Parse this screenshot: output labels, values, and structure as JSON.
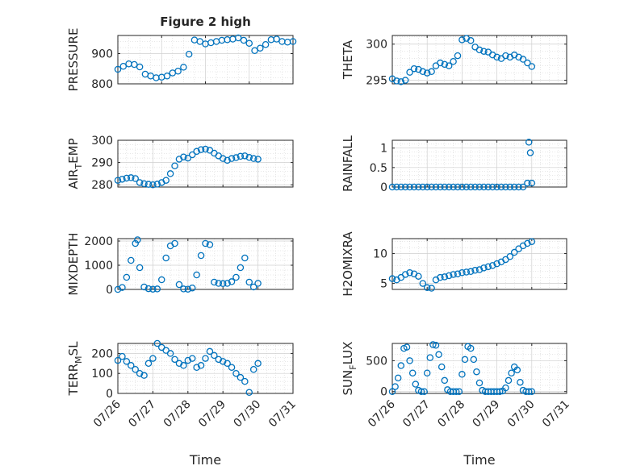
{
  "figure": {
    "title": "Figure 2 high"
  },
  "colors": {
    "marker": "#0072BD",
    "axis": "#262626",
    "grid": "#cfcfcf",
    "background": "#ffffff"
  },
  "chart_data": [
    {
      "type": "scatter",
      "id": "pressure",
      "title": "Figure 2 high",
      "ylabel": "PRESSURE",
      "xlabel": "",
      "xlim": [
        "07/26",
        "07/30"
      ],
      "ylim": [
        800,
        960
      ],
      "yticks": [
        800,
        900
      ],
      "grid": true,
      "marker": "open-circle",
      "x": [
        "07/26 00:00",
        "07/26 03:00",
        "07/26 06:00",
        "07/26 09:00",
        "07/26 12:00",
        "07/26 15:00",
        "07/26 18:00",
        "07/26 21:00",
        "07/27 00:00",
        "07/27 03:00",
        "07/27 06:00",
        "07/27 09:00",
        "07/27 12:00",
        "07/27 15:00",
        "07/27 18:00",
        "07/27 21:00",
        "07/28 00:00",
        "07/28 03:00",
        "07/28 06:00",
        "07/28 09:00",
        "07/28 12:00",
        "07/28 15:00",
        "07/28 18:00",
        "07/28 21:00",
        "07/29 00:00",
        "07/29 03:00",
        "07/29 06:00",
        "07/29 09:00",
        "07/29 12:00",
        "07/29 15:00",
        "07/29 18:00",
        "07/29 21:00",
        "07/30 00:00"
      ],
      "values": [
        848,
        858,
        866,
        864,
        856,
        832,
        826,
        820,
        822,
        826,
        836,
        842,
        855,
        898,
        945,
        940,
        932,
        936,
        940,
        944,
        946,
        948,
        952,
        944,
        934,
        910,
        918,
        930,
        946,
        948,
        940,
        938,
        940
      ]
    },
    {
      "type": "scatter",
      "id": "theta",
      "title": "",
      "ylabel": "THETA",
      "xlabel": "",
      "xlim": [
        "07/26",
        "07/31"
      ],
      "ylim": [
        294.5,
        301.2
      ],
      "yticks": [
        295,
        300
      ],
      "grid": true,
      "marker": "open-circle",
      "x": [
        "07/26 00:00",
        "07/26 03:00",
        "07/26 06:00",
        "07/26 09:00",
        "07/26 12:00",
        "07/26 15:00",
        "07/26 18:00",
        "07/26 21:00",
        "07/27 00:00",
        "07/27 03:00",
        "07/27 06:00",
        "07/27 09:00",
        "07/27 12:00",
        "07/27 15:00",
        "07/27 18:00",
        "07/27 21:00",
        "07/28 00:00",
        "07/28 03:00",
        "07/28 06:00",
        "07/28 09:00",
        "07/28 12:00",
        "07/28 15:00",
        "07/28 18:00",
        "07/28 21:00",
        "07/29 00:00",
        "07/29 03:00",
        "07/29 06:00",
        "07/29 09:00",
        "07/29 12:00",
        "07/29 15:00",
        "07/29 18:00",
        "07/29 21:00",
        "07/30 00:00"
      ],
      "values": [
        295.2,
        294.9,
        294.8,
        295.0,
        296.1,
        296.6,
        296.5,
        296.2,
        296.0,
        296.2,
        297.0,
        297.4,
        297.2,
        297.0,
        297.6,
        298.4,
        300.6,
        300.8,
        300.5,
        299.6,
        299.2,
        299.0,
        298.9,
        298.5,
        298.2,
        298.0,
        298.4,
        298.2,
        298.5,
        298.2,
        297.9,
        297.4,
        296.9
      ]
    },
    {
      "type": "scatter",
      "id": "air_temp",
      "title": "",
      "ylabel": "AIR",
      "ylabel_sub": "T",
      "ylabel_rest": "EMP",
      "xlabel": "",
      "xlim": [
        "07/26",
        "07/31"
      ],
      "ylim": [
        279,
        300
      ],
      "yticks": [
        280,
        290,
        300
      ],
      "grid": true,
      "marker": "open-circle",
      "x": [
        "07/26 00:00",
        "07/26 03:00",
        "07/26 06:00",
        "07/26 09:00",
        "07/26 12:00",
        "07/26 15:00",
        "07/26 18:00",
        "07/26 21:00",
        "07/27 00:00",
        "07/27 03:00",
        "07/27 06:00",
        "07/27 09:00",
        "07/27 12:00",
        "07/27 15:00",
        "07/27 18:00",
        "07/27 21:00",
        "07/28 00:00",
        "07/28 03:00",
        "07/28 06:00",
        "07/28 09:00",
        "07/28 12:00",
        "07/28 15:00",
        "07/28 18:00",
        "07/28 21:00",
        "07/29 00:00",
        "07/29 03:00",
        "07/29 06:00",
        "07/29 09:00",
        "07/29 12:00",
        "07/29 15:00",
        "07/29 18:00",
        "07/29 21:00",
        "07/30 00:00"
      ],
      "values": [
        282,
        282.5,
        283,
        283.2,
        282.8,
        281,
        280.5,
        280.2,
        280,
        280.3,
        281,
        282,
        285,
        288.5,
        291.5,
        292.5,
        292,
        293.5,
        295,
        295.8,
        296,
        295.5,
        294.2,
        293,
        291.8,
        291,
        291.8,
        292.2,
        292.8,
        293,
        292.3,
        291.8,
        291.5
      ]
    },
    {
      "type": "scatter",
      "id": "rainfall",
      "title": "",
      "ylabel": "RAINFALL",
      "xlabel": "",
      "xlim": [
        "07/26",
        "07/31"
      ],
      "ylim": [
        0,
        1.2
      ],
      "yticks": [
        0,
        0.5,
        1
      ],
      "grid": true,
      "marker": "open-circle",
      "x": [
        "07/26 00:00",
        "07/26 03:00",
        "07/26 06:00",
        "07/26 09:00",
        "07/26 12:00",
        "07/26 15:00",
        "07/26 18:00",
        "07/26 21:00",
        "07/27 00:00",
        "07/27 03:00",
        "07/27 06:00",
        "07/27 09:00",
        "07/27 12:00",
        "07/27 15:00",
        "07/27 18:00",
        "07/27 21:00",
        "07/28 00:00",
        "07/28 03:00",
        "07/28 06:00",
        "07/28 09:00",
        "07/28 12:00",
        "07/28 15:00",
        "07/28 18:00",
        "07/28 21:00",
        "07/29 00:00",
        "07/29 03:00",
        "07/29 06:00",
        "07/29 09:00",
        "07/29 12:00",
        "07/29 15:00",
        "07/29 18:00",
        "07/29 21:00",
        "07/29 22:00",
        "07/29 23:00",
        "07/30 00:00"
      ],
      "values": [
        0,
        0,
        0,
        0,
        0,
        0,
        0,
        0,
        0,
        0,
        0,
        0,
        0,
        0,
        0,
        0,
        0,
        0,
        0,
        0,
        0,
        0,
        0,
        0,
        0,
        0,
        0,
        0,
        0,
        0,
        0,
        0.1,
        1.15,
        0.88,
        0.1
      ]
    },
    {
      "type": "scatter",
      "id": "mixdepth",
      "title": "",
      "ylabel": "MIXDEPTH",
      "xlabel": "",
      "xlim": [
        "07/26",
        "07/31"
      ],
      "ylim": [
        0,
        2100
      ],
      "yticks": [
        0,
        1000,
        2000
      ],
      "grid": true,
      "marker": "open-circle",
      "x": [
        "07/26 00:00",
        "07/26 03:00",
        "07/26 06:00",
        "07/26 09:00",
        "07/26 12:00",
        "07/26 13:30",
        "07/26 15:00",
        "07/26 18:00",
        "07/26 21:00",
        "07/27 00:00",
        "07/27 03:00",
        "07/27 06:00",
        "07/27 09:00",
        "07/27 12:00",
        "07/27 15:00",
        "07/27 18:00",
        "07/27 21:00",
        "07/28 00:00",
        "07/28 03:00",
        "07/28 06:00",
        "07/28 09:00",
        "07/28 12:00",
        "07/28 15:00",
        "07/28 18:00",
        "07/28 21:00",
        "07/29 00:00",
        "07/29 03:00",
        "07/29 06:00",
        "07/29 09:00",
        "07/29 12:00",
        "07/29 15:00",
        "07/29 18:00",
        "07/29 21:00",
        "07/30 00:00"
      ],
      "values": [
        0,
        80,
        500,
        1200,
        1900,
        2050,
        900,
        100,
        30,
        10,
        20,
        400,
        1300,
        1800,
        1900,
        200,
        20,
        10,
        60,
        600,
        1400,
        1900,
        1850,
        300,
        250,
        240,
        250,
        320,
        500,
        900,
        1300,
        300,
        100,
        250
      ]
    },
    {
      "type": "scatter",
      "id": "h2omixra",
      "title": "",
      "ylabel": "H2OMIXRA",
      "xlabel": "",
      "xlim": [
        "07/26",
        "07/31"
      ],
      "ylim": [
        4,
        12.5
      ],
      "yticks": [
        5,
        10
      ],
      "grid": true,
      "marker": "open-circle",
      "x": [
        "07/26 00:00",
        "07/26 03:00",
        "07/26 06:00",
        "07/26 09:00",
        "07/26 12:00",
        "07/26 15:00",
        "07/26 18:00",
        "07/26 21:00",
        "07/27 00:00",
        "07/27 03:00",
        "07/27 06:00",
        "07/27 09:00",
        "07/27 12:00",
        "07/27 15:00",
        "07/27 18:00",
        "07/27 21:00",
        "07/28 00:00",
        "07/28 03:00",
        "07/28 06:00",
        "07/28 09:00",
        "07/28 12:00",
        "07/28 15:00",
        "07/28 18:00",
        "07/28 21:00",
        "07/29 00:00",
        "07/29 03:00",
        "07/29 06:00",
        "07/29 09:00",
        "07/29 12:00",
        "07/29 15:00",
        "07/29 18:00",
        "07/29 21:00",
        "07/30 00:00"
      ],
      "values": [
        5.8,
        5.6,
        6.0,
        6.5,
        6.8,
        6.6,
        6.2,
        5.0,
        4.3,
        4.2,
        5.6,
        6.0,
        6.1,
        6.3,
        6.5,
        6.6,
        6.8,
        6.9,
        7.0,
        7.2,
        7.3,
        7.6,
        7.8,
        8.0,
        8.3,
        8.6,
        9.0,
        9.5,
        10.2,
        10.8,
        11.3,
        11.7,
        12.0
      ]
    },
    {
      "type": "scatter",
      "id": "terr_msl",
      "title": "",
      "ylabel": "TERR",
      "ylabel_sub": "M",
      "ylabel_rest": "SL",
      "xlabel": "Time",
      "xlim": [
        "07/26",
        "07/31"
      ],
      "ylim": [
        0,
        250
      ],
      "yticks": [
        0,
        100,
        200
      ],
      "xticks": [
        "07/26",
        "07/27",
        "07/28",
        "07/29",
        "07/30",
        "07/31"
      ],
      "grid": true,
      "marker": "open-circle",
      "x": [
        "07/26 00:00",
        "07/26 03:00",
        "07/26 06:00",
        "07/26 09:00",
        "07/26 12:00",
        "07/26 15:00",
        "07/26 18:00",
        "07/26 21:00",
        "07/27 00:00",
        "07/27 03:00",
        "07/27 06:00",
        "07/27 09:00",
        "07/27 12:00",
        "07/27 15:00",
        "07/27 18:00",
        "07/27 21:00",
        "07/28 00:00",
        "07/28 03:00",
        "07/28 06:00",
        "07/28 09:00",
        "07/28 12:00",
        "07/28 15:00",
        "07/28 18:00",
        "07/28 21:00",
        "07/29 00:00",
        "07/29 03:00",
        "07/29 06:00",
        "07/29 09:00",
        "07/29 12:00",
        "07/29 15:00",
        "07/29 18:00",
        "07/29 21:00",
        "07/30 00:00"
      ],
      "values": [
        165,
        185,
        160,
        140,
        120,
        100,
        90,
        150,
        175,
        250,
        230,
        215,
        200,
        170,
        150,
        140,
        165,
        175,
        130,
        140,
        175,
        210,
        190,
        170,
        160,
        150,
        130,
        100,
        80,
        60,
        5,
        120,
        150
      ]
    },
    {
      "type": "scatter",
      "id": "sun_flux",
      "title": "",
      "ylabel": "SUN",
      "ylabel_sub": "F",
      "ylabel_rest": "LUX",
      "xlabel": "Time",
      "xlim": [
        "07/26",
        "07/31"
      ],
      "ylim": [
        -30,
        780
      ],
      "yticks": [
        0,
        500
      ],
      "xticks": [
        "07/26",
        "07/27",
        "07/28",
        "07/29",
        "07/30",
        "07/31"
      ],
      "grid": true,
      "marker": "open-circle",
      "x": [
        "07/26 00:00",
        "07/26 02:00",
        "07/26 04:00",
        "07/26 06:00",
        "07/26 08:00",
        "07/26 10:00",
        "07/26 12:00",
        "07/26 14:00",
        "07/26 16:00",
        "07/26 18:00",
        "07/26 20:00",
        "07/26 22:00",
        "07/27 00:00",
        "07/27 02:00",
        "07/27 04:00",
        "07/27 06:00",
        "07/27 08:00",
        "07/27 10:00",
        "07/27 12:00",
        "07/27 14:00",
        "07/27 16:00",
        "07/27 18:00",
        "07/27 20:00",
        "07/27 22:00",
        "07/28 00:00",
        "07/28 02:00",
        "07/28 04:00",
        "07/28 06:00",
        "07/28 08:00",
        "07/28 10:00",
        "07/28 12:00",
        "07/28 14:00",
        "07/28 16:00",
        "07/28 18:00",
        "07/28 20:00",
        "07/28 22:00",
        "07/29 00:00",
        "07/29 02:00",
        "07/29 04:00",
        "07/29 06:00",
        "07/29 08:00",
        "07/29 10:00",
        "07/29 12:00",
        "07/29 14:00",
        "07/29 16:00",
        "07/29 18:00",
        "07/29 20:00",
        "07/29 22:00",
        "07/30 00:00"
      ],
      "values": [
        0,
        80,
        220,
        420,
        700,
        720,
        500,
        300,
        120,
        20,
        0,
        0,
        300,
        550,
        760,
        750,
        600,
        400,
        180,
        30,
        0,
        0,
        0,
        0,
        280,
        520,
        730,
        700,
        520,
        320,
        140,
        20,
        0,
        0,
        0,
        0,
        0,
        0,
        10,
        60,
        180,
        300,
        400,
        350,
        150,
        20,
        0,
        0,
        0
      ]
    }
  ]
}
